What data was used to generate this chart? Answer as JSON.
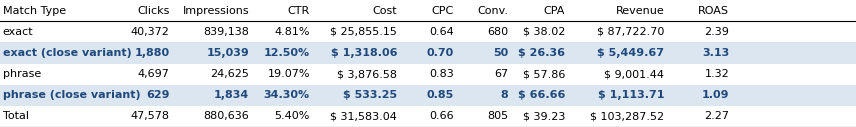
{
  "bg_color": "#ffffff",
  "row_colors": [
    "#ffffff",
    "#dce6f1",
    "#ffffff",
    "#dce6f1",
    "#ffffff"
  ],
  "text_color": "#000000",
  "bold_color": "#1f497d",
  "header_line_color": "#000000",
  "font_size": 8.0,
  "header_font_size": 8.0,
  "bold_rows": [
    1,
    3
  ],
  "col_configs": [
    [
      "Match Type",
      "left",
      "left",
      0.003
    ],
    [
      "Clicks",
      "right",
      "right",
      0.198
    ],
    [
      "Impressions",
      "right",
      "right",
      0.291
    ],
    [
      "CTR",
      "right",
      "right",
      0.362
    ],
    [
      "Cost",
      "right",
      "right",
      0.464
    ],
    [
      "CPC",
      "right",
      "right",
      0.53
    ],
    [
      "Conv.",
      "right",
      "right",
      0.594
    ],
    [
      "CPA",
      "right",
      "right",
      0.66
    ],
    [
      "Revenue",
      "right",
      "right",
      0.776
    ],
    [
      "ROAS",
      "right",
      "right",
      0.852
    ]
  ],
  "row_data": [
    [
      "exact",
      "40,372",
      "839,138",
      "4.81%",
      "$ 25,855.15",
      "0.64",
      "680",
      "$ 38.02",
      "$ 87,722.70",
      "2.39"
    ],
    [
      "exact (close variant)",
      "1,880",
      "15,039",
      "12.50%",
      "$ 1,318.06",
      "0.70",
      "50",
      "$ 26.36",
      "$ 5,449.67",
      "3.13"
    ],
    [
      "phrase",
      "4,697",
      "24,625",
      "19.07%",
      "$ 3,876.58",
      "0.83",
      "67",
      "$ 57.86",
      "$ 9,001.44",
      "1.32"
    ],
    [
      "phrase (close variant)",
      "629",
      "1,834",
      "34.30%",
      "$ 533.25",
      "0.85",
      "8",
      "$ 66.66",
      "$ 1,113.71",
      "1.09"
    ],
    [
      "Total",
      "47,578",
      "880,636",
      "5.40%",
      "$ 31,583.04",
      "0.66",
      "805",
      "$ 39.23",
      "$ 103,287.52",
      "2.27"
    ]
  ]
}
